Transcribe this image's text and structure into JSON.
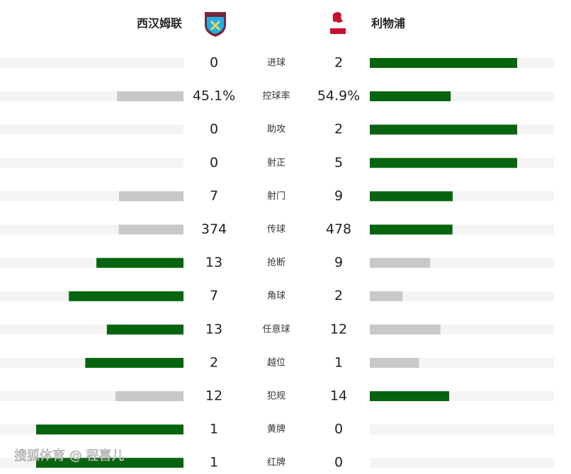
{
  "header": {
    "home": "西汉姆联",
    "away": "利物浦"
  },
  "colors": {
    "lead": "#06640e",
    "trail": "#c8c8c8",
    "track": "#f4f4f4"
  },
  "stats": [
    {
      "label": "进球",
      "home": 0,
      "away": 2
    },
    {
      "label": "控球率",
      "home": 45.1,
      "away": 54.9,
      "home_label": "45.1%",
      "away_label": "54.9%"
    },
    {
      "label": "助攻",
      "home": 0,
      "away": 2
    },
    {
      "label": "射正",
      "home": 0,
      "away": 5
    },
    {
      "label": "射门",
      "home": 7,
      "away": 9
    },
    {
      "label": "传球",
      "home": 374,
      "away": 478
    },
    {
      "label": "抢断",
      "home": 13,
      "away": 9
    },
    {
      "label": "角球",
      "home": 7,
      "away": 2
    },
    {
      "label": "任意球",
      "home": 13,
      "away": 12
    },
    {
      "label": "越位",
      "home": 2,
      "away": 1
    },
    {
      "label": "犯规",
      "home": 12,
      "away": 14
    },
    {
      "label": "黄牌",
      "home": 1,
      "away": 0
    },
    {
      "label": "红牌",
      "home": 1,
      "away": 0
    }
  ],
  "watermark": "搜狐体育 @ 程喜儿"
}
